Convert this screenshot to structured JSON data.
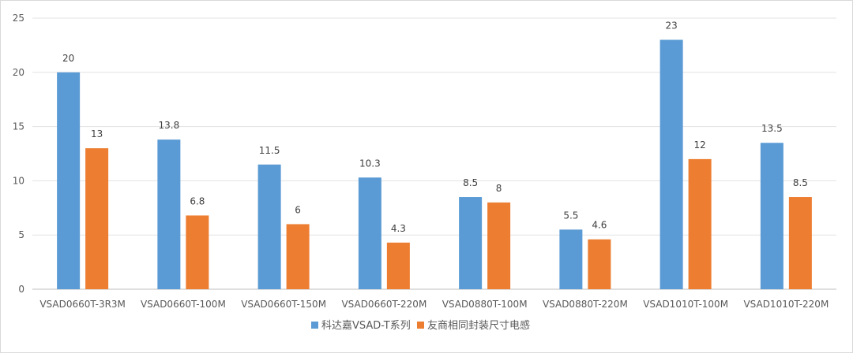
{
  "chart_data": {
    "type": "bar",
    "title": "",
    "xlabel": "",
    "ylabel": "",
    "ylim": [
      0,
      25
    ],
    "yticks": [
      0,
      5,
      10,
      15,
      20,
      25
    ],
    "grid": true,
    "legend_position": "bottom",
    "categories": [
      "VSAD0660T-3R3M",
      "VSAD0660T-100M",
      "VSAD0660T-150M",
      "VSAD0660T-220M",
      "VSAD0880T-100M",
      "VSAD0880T-220M",
      "VSAD1010T-100M",
      "VSAD1010T-220M"
    ],
    "series": [
      {
        "name": "科达嘉VSAD-T系列",
        "color": "#5b9bd5",
        "values": [
          20,
          13.8,
          11.5,
          10.3,
          8.5,
          5.5,
          23,
          13.5
        ],
        "labels": [
          "20",
          "13.8",
          "11.5",
          "10.3",
          "8.5",
          "5.5",
          "23",
          "13.5"
        ]
      },
      {
        "name": "友商相同封装尺寸电感",
        "color": "#ed7d31",
        "values": [
          13,
          6.8,
          6,
          4.3,
          8,
          4.6,
          12,
          8.5
        ],
        "labels": [
          "13",
          "6.8",
          "6",
          "4.3",
          "8",
          "4.6",
          "12",
          "8.5"
        ]
      }
    ]
  }
}
